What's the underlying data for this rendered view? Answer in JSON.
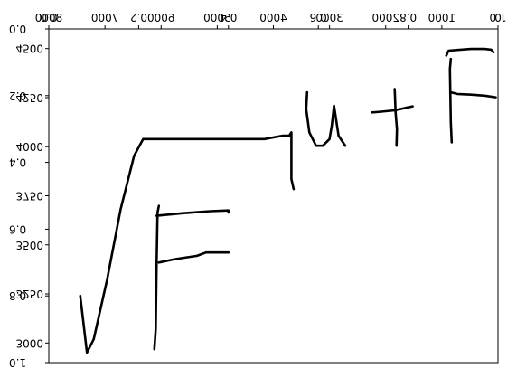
{
  "chart_data": {
    "type": "line",
    "title": "",
    "xlabel": "",
    "ylabel": "",
    "grid": false,
    "note_overlay": "Two sets of mirrored/overlapping axes drawn over a handwritten expression",
    "axes": [
      {
        "name": "primary",
        "x_range": [
          0.0,
          1.0
        ],
        "y_range": [
          1.0,
          0.0
        ],
        "x_ticks": [
          0.0,
          0.2,
          0.4,
          0.6,
          0.8,
          1.0
        ],
        "y_ticks": [
          0.0,
          0.2,
          0.4,
          0.6,
          0.8,
          1.0
        ],
        "x_tick_labels": [
          "0.0",
          "0.2",
          "0.4",
          "0.6",
          "0.8",
          "1.0"
        ],
        "y_tick_labels": [
          "0.0",
          "0.2",
          "0.4",
          "0.6",
          "0.8",
          "1.0"
        ]
      },
      {
        "name": "secondary",
        "x_range": [
          8000,
          0
        ],
        "y_range": [
          2900,
          4600
        ],
        "x_ticks": [
          8000,
          7000,
          6000,
          5000,
          4000,
          3000,
          2000,
          1000,
          0
        ],
        "y_ticks": [
          3000,
          3250,
          3500,
          3750,
          4000,
          4250,
          4500
        ],
        "x_tick_labels": [
          "8000",
          "7000",
          "6000",
          "5000",
          "4000",
          "3000",
          "2000",
          "1000",
          "0"
        ],
        "y_tick_labels": [
          "3000",
          "3250",
          "3500",
          "3750",
          "4000",
          "4250",
          "4500"
        ]
      }
    ],
    "series": [
      {
        "stroke": "sqrt-and-bar",
        "x": [
          0.07,
          0.085,
          0.1,
          0.13,
          0.16,
          0.19,
          0.21,
          0.235,
          0.28,
          0.35,
          0.42,
          0.48,
          0.52,
          0.535,
          0.54,
          0.54,
          0.545
        ],
        "y": [
          0.8,
          0.97,
          0.93,
          0.75,
          0.54,
          0.38,
          0.33,
          0.33,
          0.33,
          0.33,
          0.33,
          0.33,
          0.32,
          0.32,
          0.31,
          0.45,
          0.48
        ]
      },
      {
        "stroke": "F-stem",
        "x": [
          0.235,
          0.238,
          0.24,
          0.242,
          0.245
        ],
        "y": [
          0.96,
          0.9,
          0.7,
          0.55,
          0.53
        ]
      },
      {
        "stroke": "F-top-bar",
        "x": [
          0.24,
          0.3,
          0.36,
          0.4,
          0.4
        ],
        "y": [
          0.56,
          0.552,
          0.546,
          0.544,
          0.55
        ]
      },
      {
        "stroke": "F-mid-bar",
        "x": [
          0.245,
          0.28,
          0.33,
          0.35,
          0.37,
          0.4
        ],
        "y": [
          0.7,
          0.69,
          0.68,
          0.67,
          0.67,
          0.67
        ]
      },
      {
        "stroke": "u",
        "x": [
          0.575,
          0.573,
          0.58,
          0.595,
          0.61,
          0.625,
          0.63,
          0.635,
          0.645,
          0.66
        ],
        "y": [
          0.19,
          0.24,
          0.31,
          0.35,
          0.35,
          0.33,
          0.29,
          0.23,
          0.32,
          0.35
        ]
      },
      {
        "stroke": "plus-horizontal",
        "x": [
          0.72,
          0.74,
          0.77,
          0.8,
          0.81
        ],
        "y": [
          0.25,
          0.248,
          0.244,
          0.235,
          0.232
        ]
      },
      {
        "stroke": "plus-vertical",
        "x": [
          0.77,
          0.772,
          0.775,
          0.774
        ],
        "y": [
          0.18,
          0.25,
          0.3,
          0.35
        ]
      },
      {
        "stroke": "F2-stem",
        "x": [
          0.895,
          0.893,
          0.895,
          0.897
        ],
        "y": [
          0.09,
          0.12,
          0.28,
          0.34
        ]
      },
      {
        "stroke": "F2-top-bar",
        "x": [
          0.885,
          0.89,
          0.91,
          0.94,
          0.97,
          0.985,
          0.99
        ],
        "y": [
          0.08,
          0.065,
          0.063,
          0.06,
          0.06,
          0.062,
          0.07
        ]
      },
      {
        "stroke": "F2-mid-bar",
        "x": [
          0.895,
          0.91,
          0.94,
          0.97,
          0.995
        ],
        "y": [
          0.19,
          0.195,
          0.197,
          0.2,
          0.205
        ]
      }
    ]
  }
}
